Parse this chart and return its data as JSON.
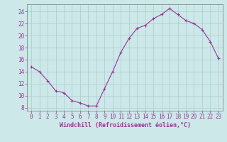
{
  "x": [
    0,
    1,
    2,
    3,
    4,
    5,
    6,
    7,
    8,
    9,
    10,
    11,
    12,
    13,
    14,
    15,
    16,
    17,
    18,
    19,
    20,
    21,
    22,
    23
  ],
  "y": [
    14.8,
    14.0,
    12.5,
    10.8,
    10.5,
    9.2,
    8.8,
    8.3,
    8.3,
    11.2,
    14.0,
    17.2,
    19.5,
    21.2,
    21.7,
    22.8,
    23.5,
    24.5,
    23.5,
    22.5,
    22.0,
    21.0,
    19.0,
    16.2
  ],
  "line_color": "#993399",
  "marker": "+",
  "marker_size": 3,
  "bg_color": "#cce8e8",
  "grid_color": "#aacccc",
  "xlabel": "Windchill (Refroidissement éolien,°C)",
  "xlabel_color": "#993399",
  "xlim": [
    -0.5,
    23.5
  ],
  "ylim": [
    7.5,
    25.2
  ],
  "yticks": [
    8,
    10,
    12,
    14,
    16,
    18,
    20,
    22,
    24
  ],
  "xtick_labels": [
    "0",
    "1",
    "2",
    "3",
    "4",
    "5",
    "6",
    "7",
    "8",
    "9",
    "10",
    "11",
    "12",
    "13",
    "14",
    "15",
    "16",
    "17",
    "18",
    "19",
    "20",
    "21",
    "22",
    "23"
  ],
  "tick_color": "#993399",
  "tick_fontsize": 5.5,
  "xlabel_fontsize": 6.0
}
